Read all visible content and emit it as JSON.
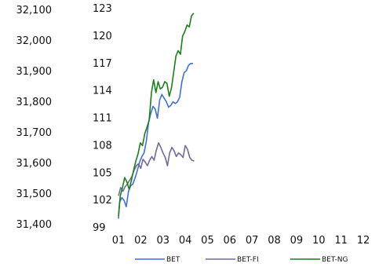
{
  "chart_data": {
    "type": "line",
    "title": "",
    "xlabel": "",
    "ylabel": "",
    "x_ticks": [
      "01",
      "02",
      "03",
      "04",
      "05",
      "06",
      "07",
      "08",
      "09",
      "10",
      "11",
      "12"
    ],
    "x_range": [
      1,
      12
    ],
    "y_left": {
      "ticks": [
        "32,100",
        "32,000",
        "31,900",
        "31,800",
        "31,700",
        "31,600",
        "31,500",
        "31,400"
      ],
      "range": [
        31400,
        32100
      ]
    },
    "y_right": {
      "ticks": [
        "123",
        "120",
        "117",
        "114",
        "111",
        "108",
        "105",
        "102",
        "99"
      ],
      "range": [
        99,
        123
      ]
    },
    "grid": false,
    "legend": "bottom",
    "series": [
      {
        "name": "BET",
        "color": "#3f6fe0",
        "axis": "right",
        "points": [
          [
            1.0,
            100.0
          ],
          [
            1.05,
            101.8
          ],
          [
            1.15,
            102.3
          ],
          [
            1.25,
            102.0
          ],
          [
            1.35,
            101.3
          ],
          [
            1.45,
            103.0
          ],
          [
            1.55,
            103.6
          ],
          [
            1.65,
            103.8
          ],
          [
            1.75,
            104.5
          ],
          [
            1.85,
            105.3
          ],
          [
            1.95,
            106.2
          ],
          [
            2.05,
            106.8
          ],
          [
            2.15,
            107.2
          ],
          [
            2.25,
            108.5
          ],
          [
            2.35,
            110.5
          ],
          [
            2.45,
            111.5
          ],
          [
            2.55,
            112.3
          ],
          [
            2.65,
            112.0
          ],
          [
            2.75,
            111.0
          ],
          [
            2.85,
            113.0
          ],
          [
            2.95,
            113.6
          ],
          [
            3.05,
            113.2
          ],
          [
            3.15,
            112.8
          ],
          [
            3.25,
            112.2
          ],
          [
            3.35,
            112.4
          ],
          [
            3.45,
            112.8
          ],
          [
            3.55,
            112.6
          ],
          [
            3.65,
            112.8
          ],
          [
            3.75,
            113.3
          ],
          [
            3.85,
            115.0
          ],
          [
            3.95,
            116.0
          ],
          [
            4.05,
            116.2
          ],
          [
            4.15,
            116.8
          ],
          [
            4.25,
            117.0
          ],
          [
            4.35,
            117.0
          ]
        ]
      },
      {
        "name": "BET-FI",
        "color": "#6f6a9a",
        "axis": "right",
        "points": [
          [
            1.0,
            102.5
          ],
          [
            1.1,
            103.4
          ],
          [
            1.2,
            103.0
          ],
          [
            1.3,
            103.5
          ],
          [
            1.4,
            103.8
          ],
          [
            1.5,
            104.2
          ],
          [
            1.6,
            104.6
          ],
          [
            1.7,
            105.3
          ],
          [
            1.8,
            105.8
          ],
          [
            1.9,
            106.0
          ],
          [
            2.0,
            105.5
          ],
          [
            2.1,
            106.5
          ],
          [
            2.2,
            106.2
          ],
          [
            2.3,
            105.8
          ],
          [
            2.4,
            106.4
          ],
          [
            2.5,
            106.8
          ],
          [
            2.6,
            106.4
          ],
          [
            2.7,
            107.5
          ],
          [
            2.8,
            108.3
          ],
          [
            2.9,
            107.8
          ],
          [
            3.0,
            107.2
          ],
          [
            3.1,
            106.7
          ],
          [
            3.2,
            105.8
          ],
          [
            3.3,
            107.2
          ],
          [
            3.4,
            107.8
          ],
          [
            3.5,
            107.4
          ],
          [
            3.6,
            106.8
          ],
          [
            3.7,
            107.2
          ],
          [
            3.8,
            107.0
          ],
          [
            3.9,
            106.7
          ],
          [
            4.0,
            108.0
          ],
          [
            4.1,
            107.6
          ],
          [
            4.2,
            106.7
          ],
          [
            4.3,
            106.4
          ],
          [
            4.4,
            106.3
          ]
        ]
      },
      {
        "name": "BET-NG",
        "color": "#1a7f1a",
        "axis": "right",
        "points": [
          [
            1.0,
            100.3
          ],
          [
            1.08,
            102.5
          ],
          [
            1.18,
            103.4
          ],
          [
            1.28,
            104.5
          ],
          [
            1.38,
            104.0
          ],
          [
            1.48,
            103.2
          ],
          [
            1.58,
            104.2
          ],
          [
            1.68,
            105.3
          ],
          [
            1.78,
            106.3
          ],
          [
            1.88,
            107.1
          ],
          [
            1.98,
            108.3
          ],
          [
            2.08,
            108.0
          ],
          [
            2.18,
            109.3
          ],
          [
            2.28,
            110.0
          ],
          [
            2.38,
            110.8
          ],
          [
            2.48,
            113.8
          ],
          [
            2.58,
            115.2
          ],
          [
            2.68,
            113.8
          ],
          [
            2.78,
            115.0
          ],
          [
            2.88,
            114.2
          ],
          [
            2.98,
            114.4
          ],
          [
            3.08,
            115.0
          ],
          [
            3.18,
            114.8
          ],
          [
            3.28,
            113.4
          ],
          [
            3.38,
            114.3
          ],
          [
            3.48,
            116.0
          ],
          [
            3.58,
            117.8
          ],
          [
            3.68,
            118.4
          ],
          [
            3.78,
            118.0
          ],
          [
            3.88,
            120.0
          ],
          [
            3.98,
            120.5
          ],
          [
            4.08,
            121.2
          ],
          [
            4.18,
            121.0
          ],
          [
            4.28,
            122.2
          ],
          [
            4.38,
            122.5
          ]
        ]
      }
    ]
  }
}
